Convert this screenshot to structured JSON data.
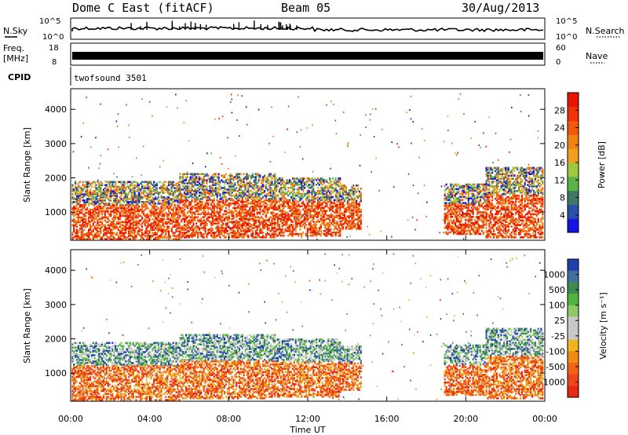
{
  "header": {
    "station_title": "Dome C East (fitACF)",
    "beam": "Beam 05",
    "date": "30/Aug/2013"
  },
  "param_panels": {
    "nsky_label": "N.Sky",
    "nsky_ticks": [
      "10^5",
      "10^0"
    ],
    "nsearch_label": "N.Search",
    "nsearch_ticks": [
      "10^5",
      "10^0"
    ],
    "freq_label": "Freq.",
    "freq_unit": "[MHz]",
    "freq_ticks": [
      "18",
      "8"
    ],
    "nave_label": "Nave",
    "nave_ticks": [
      "60",
      "0"
    ],
    "cpid_label": "CPID",
    "cpid_text": "twofsound 3501"
  },
  "chart_data": [
    {
      "type": "heatmap",
      "name": "power",
      "title": "",
      "xlabel": "",
      "ylabel": "Slant Range [km]",
      "x_range_hours": [
        0,
        24
      ],
      "ylim": [
        180,
        4600
      ],
      "y_ticks": [
        1000,
        2000,
        3000,
        4000
      ],
      "y_tick_labels": [
        "1000",
        "2000",
        "3000",
        "4000"
      ],
      "colorbar": {
        "label": "Power [dB]",
        "ticks": [
          "4",
          "8",
          "12",
          "16",
          "20",
          "24",
          "28"
        ],
        "tick_values": [
          4,
          8,
          12,
          16,
          20,
          24,
          28
        ],
        "colors": [
          "#1414e6",
          "#2850aa",
          "#3c7864",
          "#5ab446",
          "#a0c83c",
          "#f0a01e",
          "#f08214",
          "#f05a0a",
          "#f03206",
          "#e61400"
        ]
      }
    },
    {
      "type": "heatmap",
      "name": "velocity",
      "title": "",
      "xlabel": "Time UT",
      "ylabel": "Slant Range [km]",
      "x_range_hours": [
        0,
        24
      ],
      "x_ticks": [
        "00:00",
        "04:00",
        "08:00",
        "12:00",
        "16:00",
        "20:00",
        "00:00"
      ],
      "ylim": [
        180,
        4600
      ],
      "y_ticks": [
        1000,
        2000,
        3000,
        4000
      ],
      "y_tick_labels": [
        "1000",
        "2000",
        "3000",
        "4000"
      ],
      "colorbar": {
        "label": "Velocity [m s⁻¹]",
        "ticks": [
          "1000",
          "500",
          "100",
          "25",
          "-25",
          "-100",
          "-500",
          "-1000"
        ],
        "colors": [
          "#2040b0",
          "#4070a0",
          "#3c8c50",
          "#50b43c",
          "#8cc864",
          "#c8c8c8",
          "#c8c8c8",
          "#f0b41e",
          "#f08c14",
          "#f06414",
          "#f0461e",
          "#e62814"
        ]
      }
    }
  ]
}
